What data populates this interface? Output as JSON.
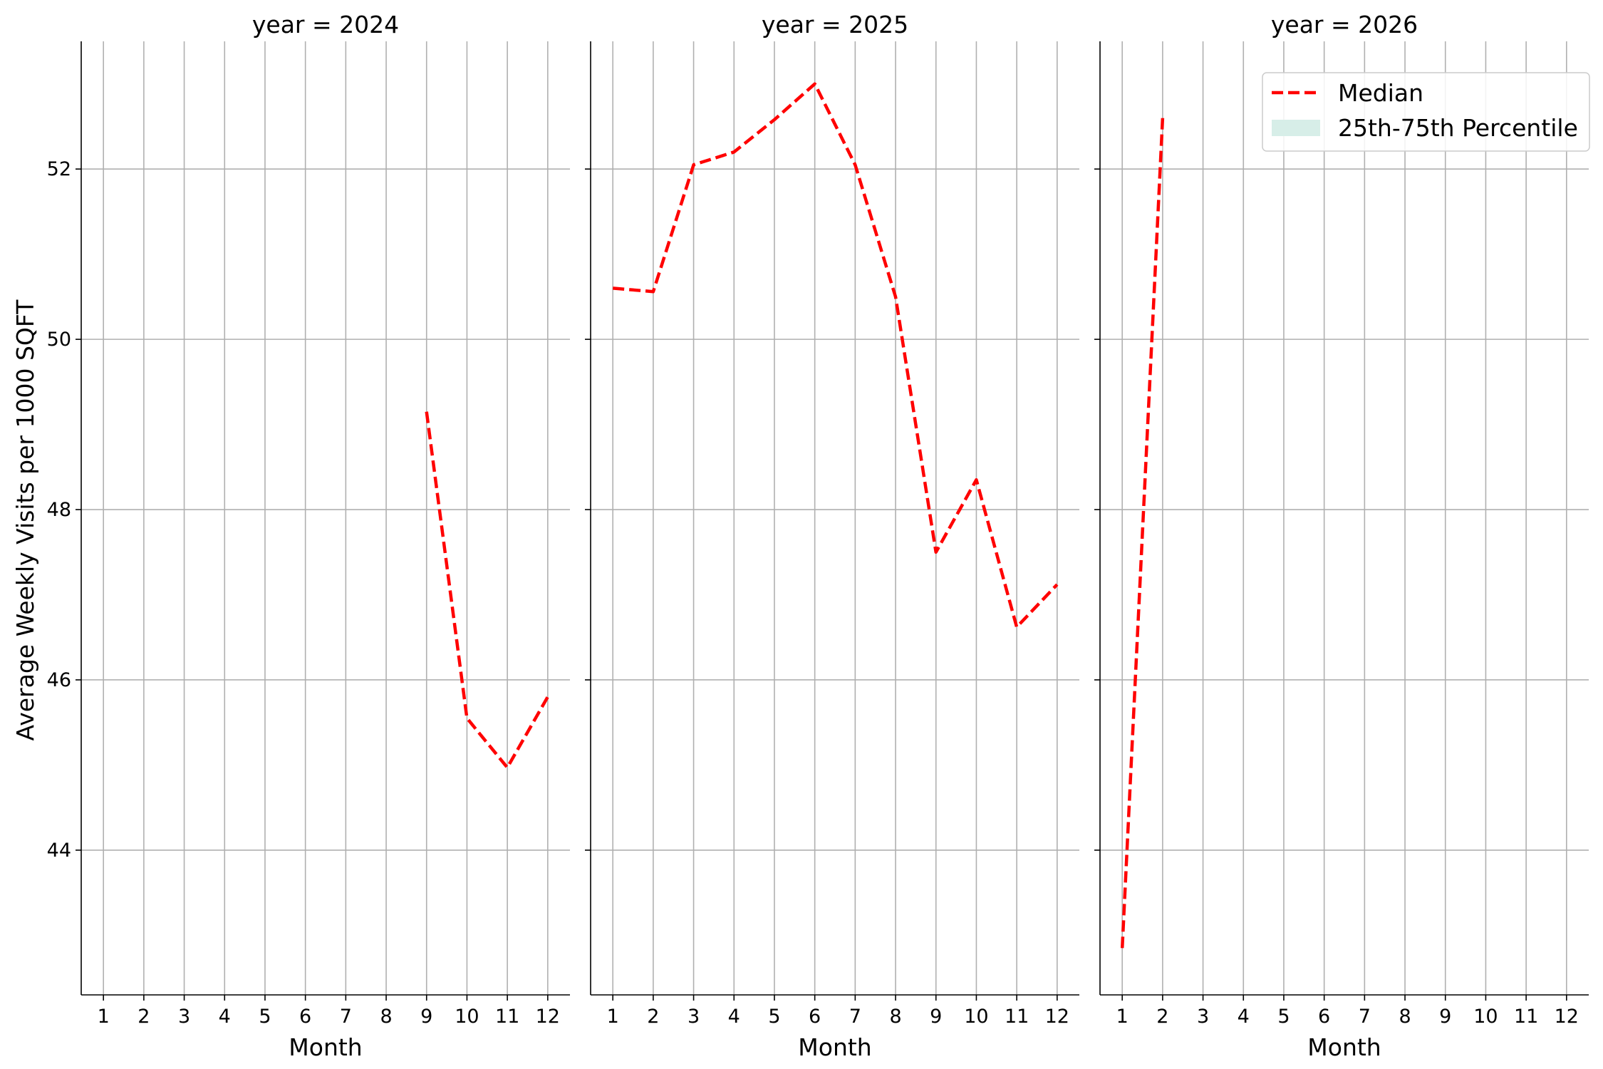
{
  "chart_data": {
    "type": "line",
    "ylabel": "Average Weekly Visits per 1000 SQFT",
    "xlabel": "Month",
    "ylim": [
      42.3,
      53.5
    ],
    "yticks": [
      44,
      46,
      48,
      50,
      52
    ],
    "xticks": [
      1,
      2,
      3,
      4,
      5,
      6,
      7,
      8,
      9,
      10,
      11,
      12
    ],
    "grid": true,
    "legend": {
      "placement": "top-right",
      "entries": [
        {
          "label": "Median",
          "color": "#ff0000",
          "style": "dashed"
        },
        {
          "label": "25th-75th Percentile",
          "color": "#d7eee8",
          "style": "area"
        }
      ]
    },
    "panels": [
      {
        "title": "year = 2024",
        "series": [
          {
            "x": [
              9,
              10,
              11,
              12
            ],
            "y": [
              49.15,
              45.55,
              44.97,
              45.8
            ]
          }
        ]
      },
      {
        "title": "year = 2025",
        "series": [
          {
            "x": [
              1,
              2,
              3,
              4,
              5,
              6,
              7,
              8,
              9,
              10,
              11,
              12
            ],
            "y": [
              50.6,
              50.56,
              52.05,
              52.2,
              52.58,
              53.0,
              52.05,
              50.5,
              47.5,
              48.35,
              46.62,
              47.12
            ]
          }
        ]
      },
      {
        "title": "year = 2026",
        "series": [
          {
            "x": [
              1,
              2
            ],
            "y": [
              42.85,
              52.6
            ]
          }
        ]
      }
    ]
  }
}
